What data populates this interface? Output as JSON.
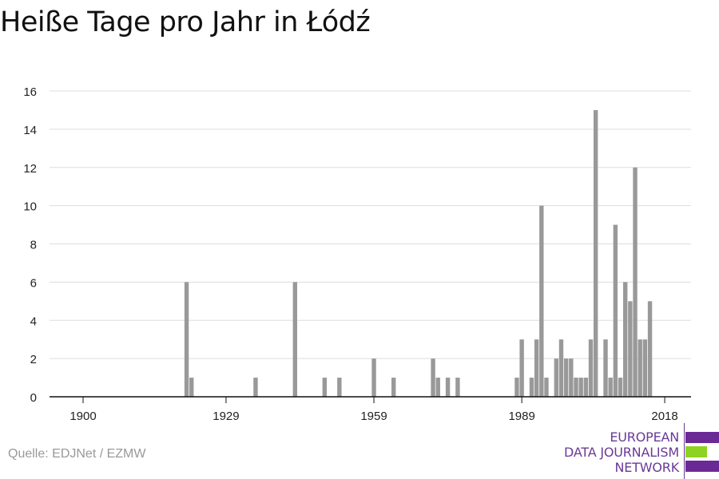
{
  "title": "Heiße Tage pro Jahr in Łódź",
  "source": "Quelle: EDJNet / EZMW",
  "logo": {
    "lines": [
      "EUROPEAN",
      "DATA JOURNALISM",
      "NETWORK"
    ],
    "colors": {
      "purple": "#6a2a96",
      "green": "#8ed321"
    }
  },
  "chart_data": {
    "type": "bar",
    "title": "Heiße Tage pro Jahr in Łódź",
    "xlabel": "",
    "ylabel": "",
    "xlim": [
      1894,
      2024
    ],
    "ylim": [
      0,
      16
    ],
    "grid": true,
    "legend": "none",
    "bar_color": "#999999",
    "x_ticks": [
      1900,
      1929,
      1959,
      1989,
      2018
    ],
    "y_ticks": [
      0,
      2,
      4,
      6,
      8,
      10,
      12,
      14,
      16
    ],
    "x": [
      1921,
      1922,
      1935,
      1943,
      1949,
      1952,
      1959,
      1963,
      1971,
      1972,
      1974,
      1976,
      1988,
      1989,
      1991,
      1992,
      1993,
      1994,
      1996,
      1997,
      1998,
      1999,
      2000,
      2001,
      2002,
      2003,
      2004,
      2006,
      2007,
      2008,
      2009,
      2010,
      2011,
      2012,
      2013,
      2014,
      2015,
      2016
    ],
    "values": [
      6,
      1,
      1,
      6,
      1,
      1,
      2,
      1,
      2,
      1,
      1,
      1,
      1,
      3,
      1,
      3,
      10,
      1,
      2,
      3,
      2,
      2,
      1,
      1,
      1,
      3,
      15,
      3,
      1,
      9,
      1,
      6,
      5,
      12,
      3,
      3,
      5,
      0
    ]
  }
}
